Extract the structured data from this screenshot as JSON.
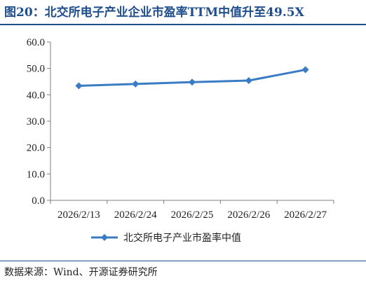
{
  "title": "图20：北交所电子产业企业市盈率TTM中值升至49.5X",
  "source": "数据来源：Wind、开源证券研究所",
  "colors": {
    "title": "#1f4e8c",
    "series": "#3a7cc4"
  },
  "chart_data": {
    "type": "line",
    "categories": [
      "2026/2/13",
      "2026/2/24",
      "2026/2/25",
      "2026/2/26",
      "2026/2/27"
    ],
    "series": [
      {
        "name": "北交所电子产业市盈率中值",
        "values": [
          43.4,
          44.1,
          44.8,
          45.4,
          49.5
        ]
      }
    ],
    "ylim": [
      0,
      60
    ],
    "yticks": [
      "0.0",
      "10.0",
      "20.0",
      "30.0",
      "40.0",
      "50.0",
      "60.0"
    ],
    "grid": false,
    "legend": "bottom-center",
    "marker": "diamond"
  }
}
